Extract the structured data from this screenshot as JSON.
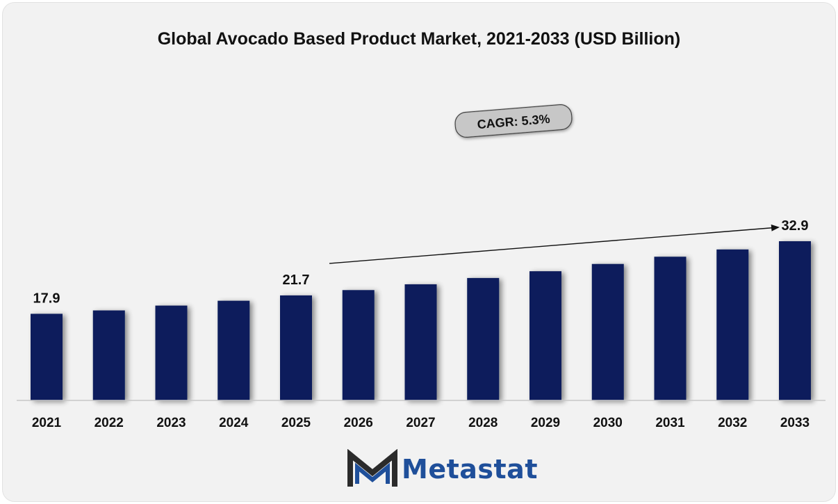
{
  "chart_data": {
    "type": "bar",
    "title": "Global Avocado Based Product Market, 2021-2033 (USD Billion)",
    "categories": [
      "2021",
      "2022",
      "2023",
      "2024",
      "2025",
      "2026",
      "2027",
      "2028",
      "2029",
      "2030",
      "2031",
      "2032",
      "2033"
    ],
    "series": [
      {
        "values": [
          17.9,
          18.6,
          19.6,
          20.6,
          21.7,
          22.8,
          24.0,
          25.3,
          26.7,
          28.2,
          29.7,
          31.2,
          32.9
        ]
      }
    ],
    "data_labels": [
      {
        "category": "2021",
        "text": "17.9"
      },
      {
        "category": "2025",
        "text": "21.7"
      },
      {
        "category": "2033",
        "text": "32.9"
      }
    ],
    "annotation": {
      "text": "CAGR: 5.3%",
      "from": "2025",
      "to": "2033"
    },
    "ylim": [
      0,
      35
    ],
    "xlabel": "",
    "ylabel": "",
    "grid": false,
    "bar_color": "#0c1f5c"
  },
  "brand": {
    "name": "Metastat",
    "text_color": "#1f4f9a",
    "mark_dark": "#2b2b2b",
    "mark_accent": "#1f4f9a"
  }
}
